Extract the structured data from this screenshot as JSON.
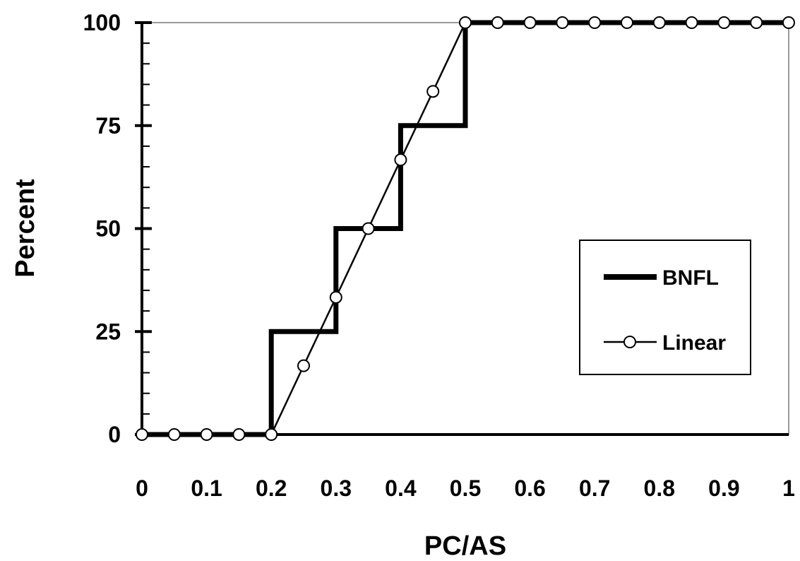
{
  "chart_data": {
    "type": "line",
    "title": "",
    "xlabel": "PC/AS",
    "ylabel": "Percent",
    "xlim": [
      0,
      1
    ],
    "ylim": [
      0,
      100
    ],
    "x_ticks": [
      "0",
      "0.1",
      "0.2",
      "0.3",
      "0.4",
      "0.5",
      "0.6",
      "0.7",
      "0.8",
      "0.9",
      "1"
    ],
    "y_ticks": [
      "0",
      "25",
      "50",
      "75",
      "100"
    ],
    "grid": false,
    "legend_position": "right",
    "series": [
      {
        "name": "BNFL",
        "style": "step",
        "color": "#000000",
        "x": [
          0,
          0.2,
          0.2,
          0.3,
          0.3,
          0.4,
          0.4,
          0.5,
          0.5,
          1
        ],
        "y": [
          0,
          0,
          25,
          25,
          50,
          50,
          75,
          75,
          100,
          100
        ]
      },
      {
        "name": "Linear",
        "style": "line-markers",
        "marker": "open-circle",
        "color": "#000000",
        "x": [
          0,
          0.05,
          0.1,
          0.15,
          0.2,
          0.25,
          0.3,
          0.35,
          0.4,
          0.45,
          0.5,
          0.55,
          0.6,
          0.65,
          0.7,
          0.75,
          0.8,
          0.85,
          0.9,
          0.95,
          1
        ],
        "y": [
          0,
          0,
          0,
          0,
          0,
          16.7,
          33.3,
          50,
          66.7,
          83.3,
          100,
          100,
          100,
          100,
          100,
          100,
          100,
          100,
          100,
          100,
          100
        ]
      }
    ]
  }
}
